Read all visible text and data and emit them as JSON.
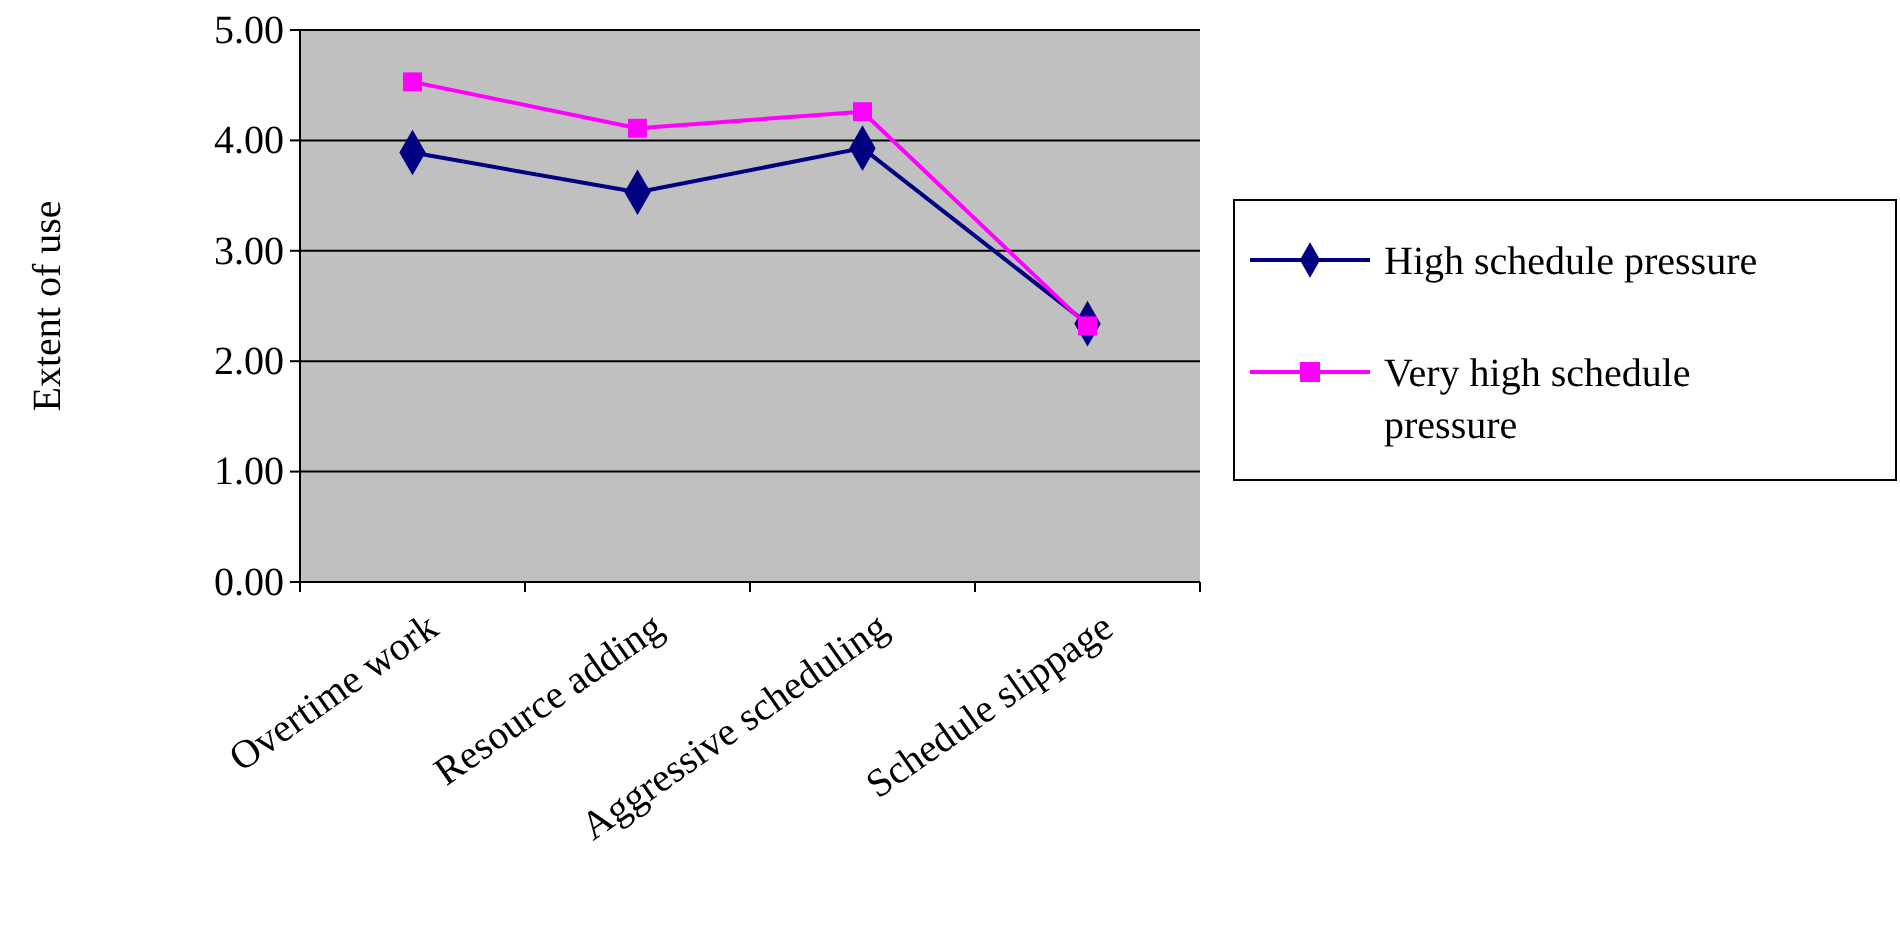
{
  "chart_data": {
    "type": "line",
    "ylabel": "Extent of use",
    "categories": [
      "Overtime work",
      "Resource adding",
      "Aggressive scheduling",
      "Schedule slippage"
    ],
    "series": [
      {
        "name": "High schedule pressure",
        "color": "#000080",
        "marker": "diamond",
        "values": [
          3.89,
          3.53,
          3.93,
          2.34
        ]
      },
      {
        "name": "Very high schedule pressure",
        "color": "#ff00ff",
        "marker": "square",
        "values": [
          4.53,
          4.11,
          4.26,
          2.32
        ]
      }
    ],
    "ylim": [
      0,
      5
    ],
    "yticks": [
      {
        "value": 0,
        "label": "0.00"
      },
      {
        "value": 1,
        "label": "1.00"
      },
      {
        "value": 2,
        "label": "2.00"
      },
      {
        "value": 3,
        "label": "3.00"
      },
      {
        "value": 4,
        "label": "4.00"
      },
      {
        "value": 5,
        "label": "5.00"
      }
    ],
    "grid": "y",
    "legend": "right"
  }
}
